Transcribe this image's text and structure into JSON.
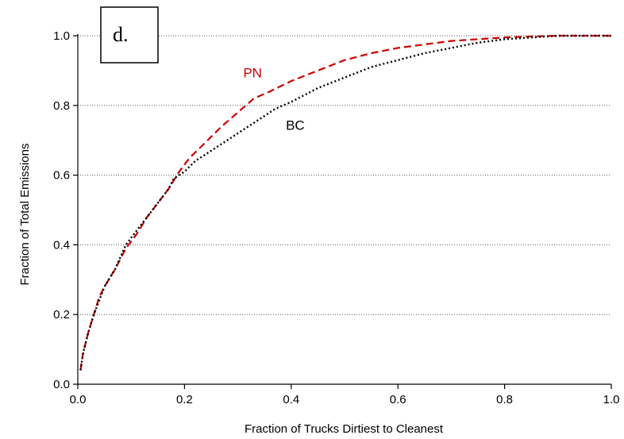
{
  "chart_data": {
    "type": "line",
    "panel_label": "d.",
    "xlabel": "Fraction of Trucks Dirtiest to Cleanest",
    "ylabel": "Fraction of Total Emissions",
    "xlim": [
      0,
      1
    ],
    "ylim": [
      0,
      1
    ],
    "x_ticks": [
      "0.0",
      "0.2",
      "0.4",
      "0.6",
      "0.8",
      "1.0"
    ],
    "y_ticks": [
      "0.0",
      "0.2",
      "0.4",
      "0.6",
      "0.8",
      "1.0"
    ],
    "grid": "horizontal dotted",
    "series": [
      {
        "name": "PN",
        "color": "#cc0000",
        "style": "dashed",
        "points": [
          [
            0.005,
            0.04
          ],
          [
            0.01,
            0.09
          ],
          [
            0.02,
            0.15
          ],
          [
            0.03,
            0.2
          ],
          [
            0.04,
            0.25
          ],
          [
            0.05,
            0.28
          ],
          [
            0.07,
            0.33
          ],
          [
            0.09,
            0.39
          ],
          [
            0.11,
            0.43
          ],
          [
            0.13,
            0.48
          ],
          [
            0.15,
            0.52
          ],
          [
            0.17,
            0.56
          ],
          [
            0.19,
            0.61
          ],
          [
            0.21,
            0.65
          ],
          [
            0.23,
            0.68
          ],
          [
            0.25,
            0.71
          ],
          [
            0.27,
            0.74
          ],
          [
            0.3,
            0.78
          ],
          [
            0.33,
            0.82
          ],
          [
            0.36,
            0.84
          ],
          [
            0.4,
            0.87
          ],
          [
            0.45,
            0.9
          ],
          [
            0.5,
            0.93
          ],
          [
            0.55,
            0.95
          ],
          [
            0.6,
            0.965
          ],
          [
            0.65,
            0.975
          ],
          [
            0.7,
            0.985
          ],
          [
            0.75,
            0.99
          ],
          [
            0.8,
            0.995
          ],
          [
            0.85,
            0.998
          ],
          [
            0.9,
            1.0
          ],
          [
            1.0,
            1.0
          ]
        ]
      },
      {
        "name": "BC",
        "color": "#000000",
        "style": "dotted",
        "points": [
          [
            0.005,
            0.04
          ],
          [
            0.01,
            0.09
          ],
          [
            0.02,
            0.15
          ],
          [
            0.03,
            0.2
          ],
          [
            0.04,
            0.24
          ],
          [
            0.05,
            0.28
          ],
          [
            0.07,
            0.33
          ],
          [
            0.09,
            0.4
          ],
          [
            0.11,
            0.44
          ],
          [
            0.13,
            0.48
          ],
          [
            0.15,
            0.52
          ],
          [
            0.17,
            0.56
          ],
          [
            0.18,
            0.59
          ],
          [
            0.2,
            0.61
          ],
          [
            0.22,
            0.64
          ],
          [
            0.25,
            0.67
          ],
          [
            0.28,
            0.7
          ],
          [
            0.31,
            0.73
          ],
          [
            0.34,
            0.76
          ],
          [
            0.37,
            0.79
          ],
          [
            0.4,
            0.81
          ],
          [
            0.45,
            0.85
          ],
          [
            0.5,
            0.88
          ],
          [
            0.55,
            0.91
          ],
          [
            0.6,
            0.93
          ],
          [
            0.65,
            0.95
          ],
          [
            0.7,
            0.965
          ],
          [
            0.75,
            0.98
          ],
          [
            0.8,
            0.99
          ],
          [
            0.85,
            0.995
          ],
          [
            0.9,
            1.0
          ],
          [
            1.0,
            1.0
          ]
        ]
      }
    ],
    "annotations": [
      {
        "text": "PN",
        "x": 0.31,
        "y": 0.88,
        "color": "#cc0000"
      },
      {
        "text": "BC",
        "x": 0.39,
        "y": 0.73,
        "color": "#000000"
      }
    ]
  }
}
